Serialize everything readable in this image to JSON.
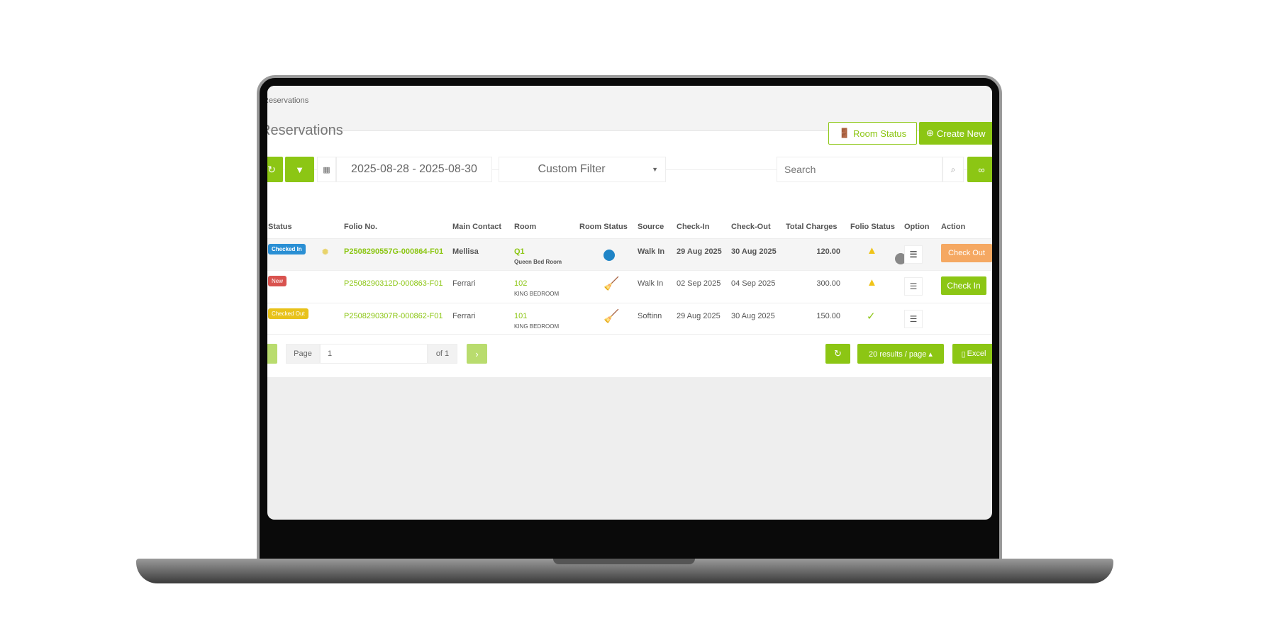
{
  "breadcrumb": "Reservations",
  "page_title": "Reservations",
  "header_buttons": {
    "room_status": "Room Status",
    "create_new": "Create New"
  },
  "toolbar": {
    "date_range": "2025-08-28 - 2025-08-30",
    "custom_filter": "Custom Filter",
    "search_placeholder": "Search"
  },
  "table": {
    "headers": [
      "Status",
      "Folio No.",
      "Main Contact",
      "Room",
      "Room Status",
      "Source",
      "Check-In",
      "Check-Out",
      "Total Charges",
      "Folio Status",
      "Option",
      "Action"
    ],
    "rows": [
      {
        "status": "Checked In",
        "status_color": "#2a8fd4",
        "folio": "P2508290557G-000864-F01",
        "contact": "Mellisa",
        "room": "Q1",
        "room_type": "Queen Bed Room",
        "room_status_icon": "blue-dot",
        "source": "Walk In",
        "check_in": "29 Aug 2025",
        "check_out": "30 Aug 2025",
        "total": "120.00",
        "folio_status": "warning",
        "action": "Check Out",
        "action_color": "#f5a862"
      },
      {
        "status": "New",
        "status_color": "#d9534f",
        "folio": "P2508290312D-000863-F01",
        "contact": "Ferrari",
        "room": "102",
        "room_type": "KING BEDROOM",
        "room_status_icon": "broom-orange",
        "source": "Walk In",
        "check_in": "02 Sep 2025",
        "check_out": "04 Sep 2025",
        "total": "300.00",
        "folio_status": "warning",
        "action": "Check In",
        "action_color": "#8cc614"
      },
      {
        "status": "Checked Out",
        "status_color": "#e8c21a",
        "folio": "P2508290307R-000862-F01",
        "contact": "Ferrari",
        "room": "101",
        "room_type": "KING BEDROOM",
        "room_status_icon": "broom-yellow",
        "source": "Softinn",
        "check_in": "29 Aug 2025",
        "check_out": "30 Aug 2025",
        "total": "150.00",
        "folio_status": "ok",
        "action": ""
      }
    ]
  },
  "pagination": {
    "page_label": "Page",
    "page_value": "1",
    "of_label": "of 1",
    "per_page": "20 results / page ▴",
    "excel": "Excel"
  },
  "colors": {
    "accent": "#8cc614"
  }
}
